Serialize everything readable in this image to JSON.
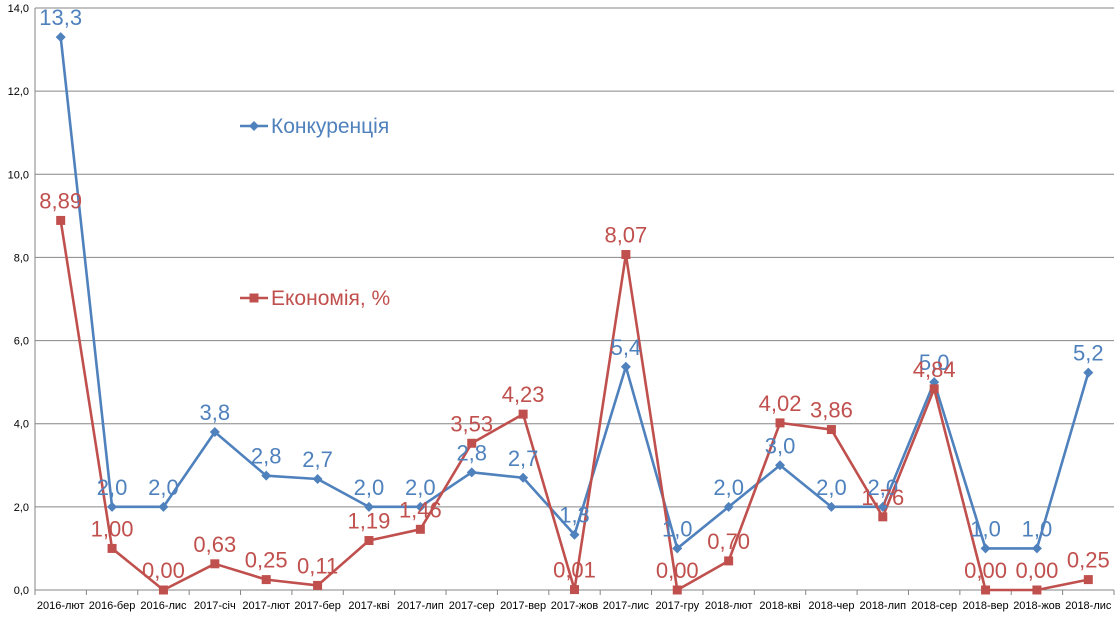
{
  "chart_data": {
    "type": "line",
    "title": "",
    "xlabel": "",
    "ylabel": "",
    "ylim": [
      0,
      14
    ],
    "yticks": [
      "0,0",
      "2,0",
      "4,0",
      "6,0",
      "8,0",
      "10,0",
      "12,0",
      "14,0"
    ],
    "grid": true,
    "legend_placement": "inside-left",
    "categories": [
      "2016-лют",
      "2016-бер",
      "2016-лис",
      "2017-січ",
      "2017-лют",
      "2017-бер",
      "2017-кві",
      "2017-лип",
      "2017-сер",
      "2017-вер",
      "2017-жов",
      "2017-лис",
      "2017-гру",
      "2018-лют",
      "2018-кві",
      "2018-чер",
      "2018-лип",
      "2018-сер",
      "2018-вер",
      "2018-жов",
      "2018-лис"
    ],
    "series": [
      {
        "name": "Конкуренція",
        "color": "#4F81BD",
        "marker": "diamond",
        "values": [
          13.3,
          2.0,
          2.0,
          3.8,
          2.75,
          2.67,
          2.0,
          2.0,
          2.83,
          2.7,
          1.33,
          5.37,
          1.0,
          2.0,
          3.0,
          2.0,
          2.0,
          5.0,
          1.0,
          1.0,
          5.23
        ],
        "labels": [
          "13,3",
          "2,0",
          "2,0",
          "3,8",
          "2,8",
          "2,7",
          "2,0",
          "2,0",
          "2,8",
          "2,7",
          "1,3",
          "5,4",
          "1,0",
          "2,0",
          "3,0",
          "2,0",
          "2,0",
          "5,0",
          "1,0",
          "1,0",
          "5,2"
        ]
      },
      {
        "name": "Економія, %",
        "color": "#C0504D",
        "marker": "square",
        "values": [
          8.89,
          1.0,
          0.0,
          0.63,
          0.25,
          0.11,
          1.19,
          1.46,
          3.53,
          4.23,
          0.01,
          8.07,
          0.0,
          0.7,
          4.02,
          3.86,
          1.76,
          4.84,
          0.0,
          0.0,
          0.25
        ],
        "labels": [
          "8,89",
          "1,00",
          "0,00",
          "0,63",
          "0,25",
          "0,11",
          "1,19",
          "1,46",
          "3,53",
          "4,23",
          "0,01",
          "8,07",
          "0,00",
          "0,70",
          "4,02",
          "3,86",
          "1,76",
          "4,84",
          "0,00",
          "0,00",
          "0,25"
        ]
      }
    ]
  }
}
